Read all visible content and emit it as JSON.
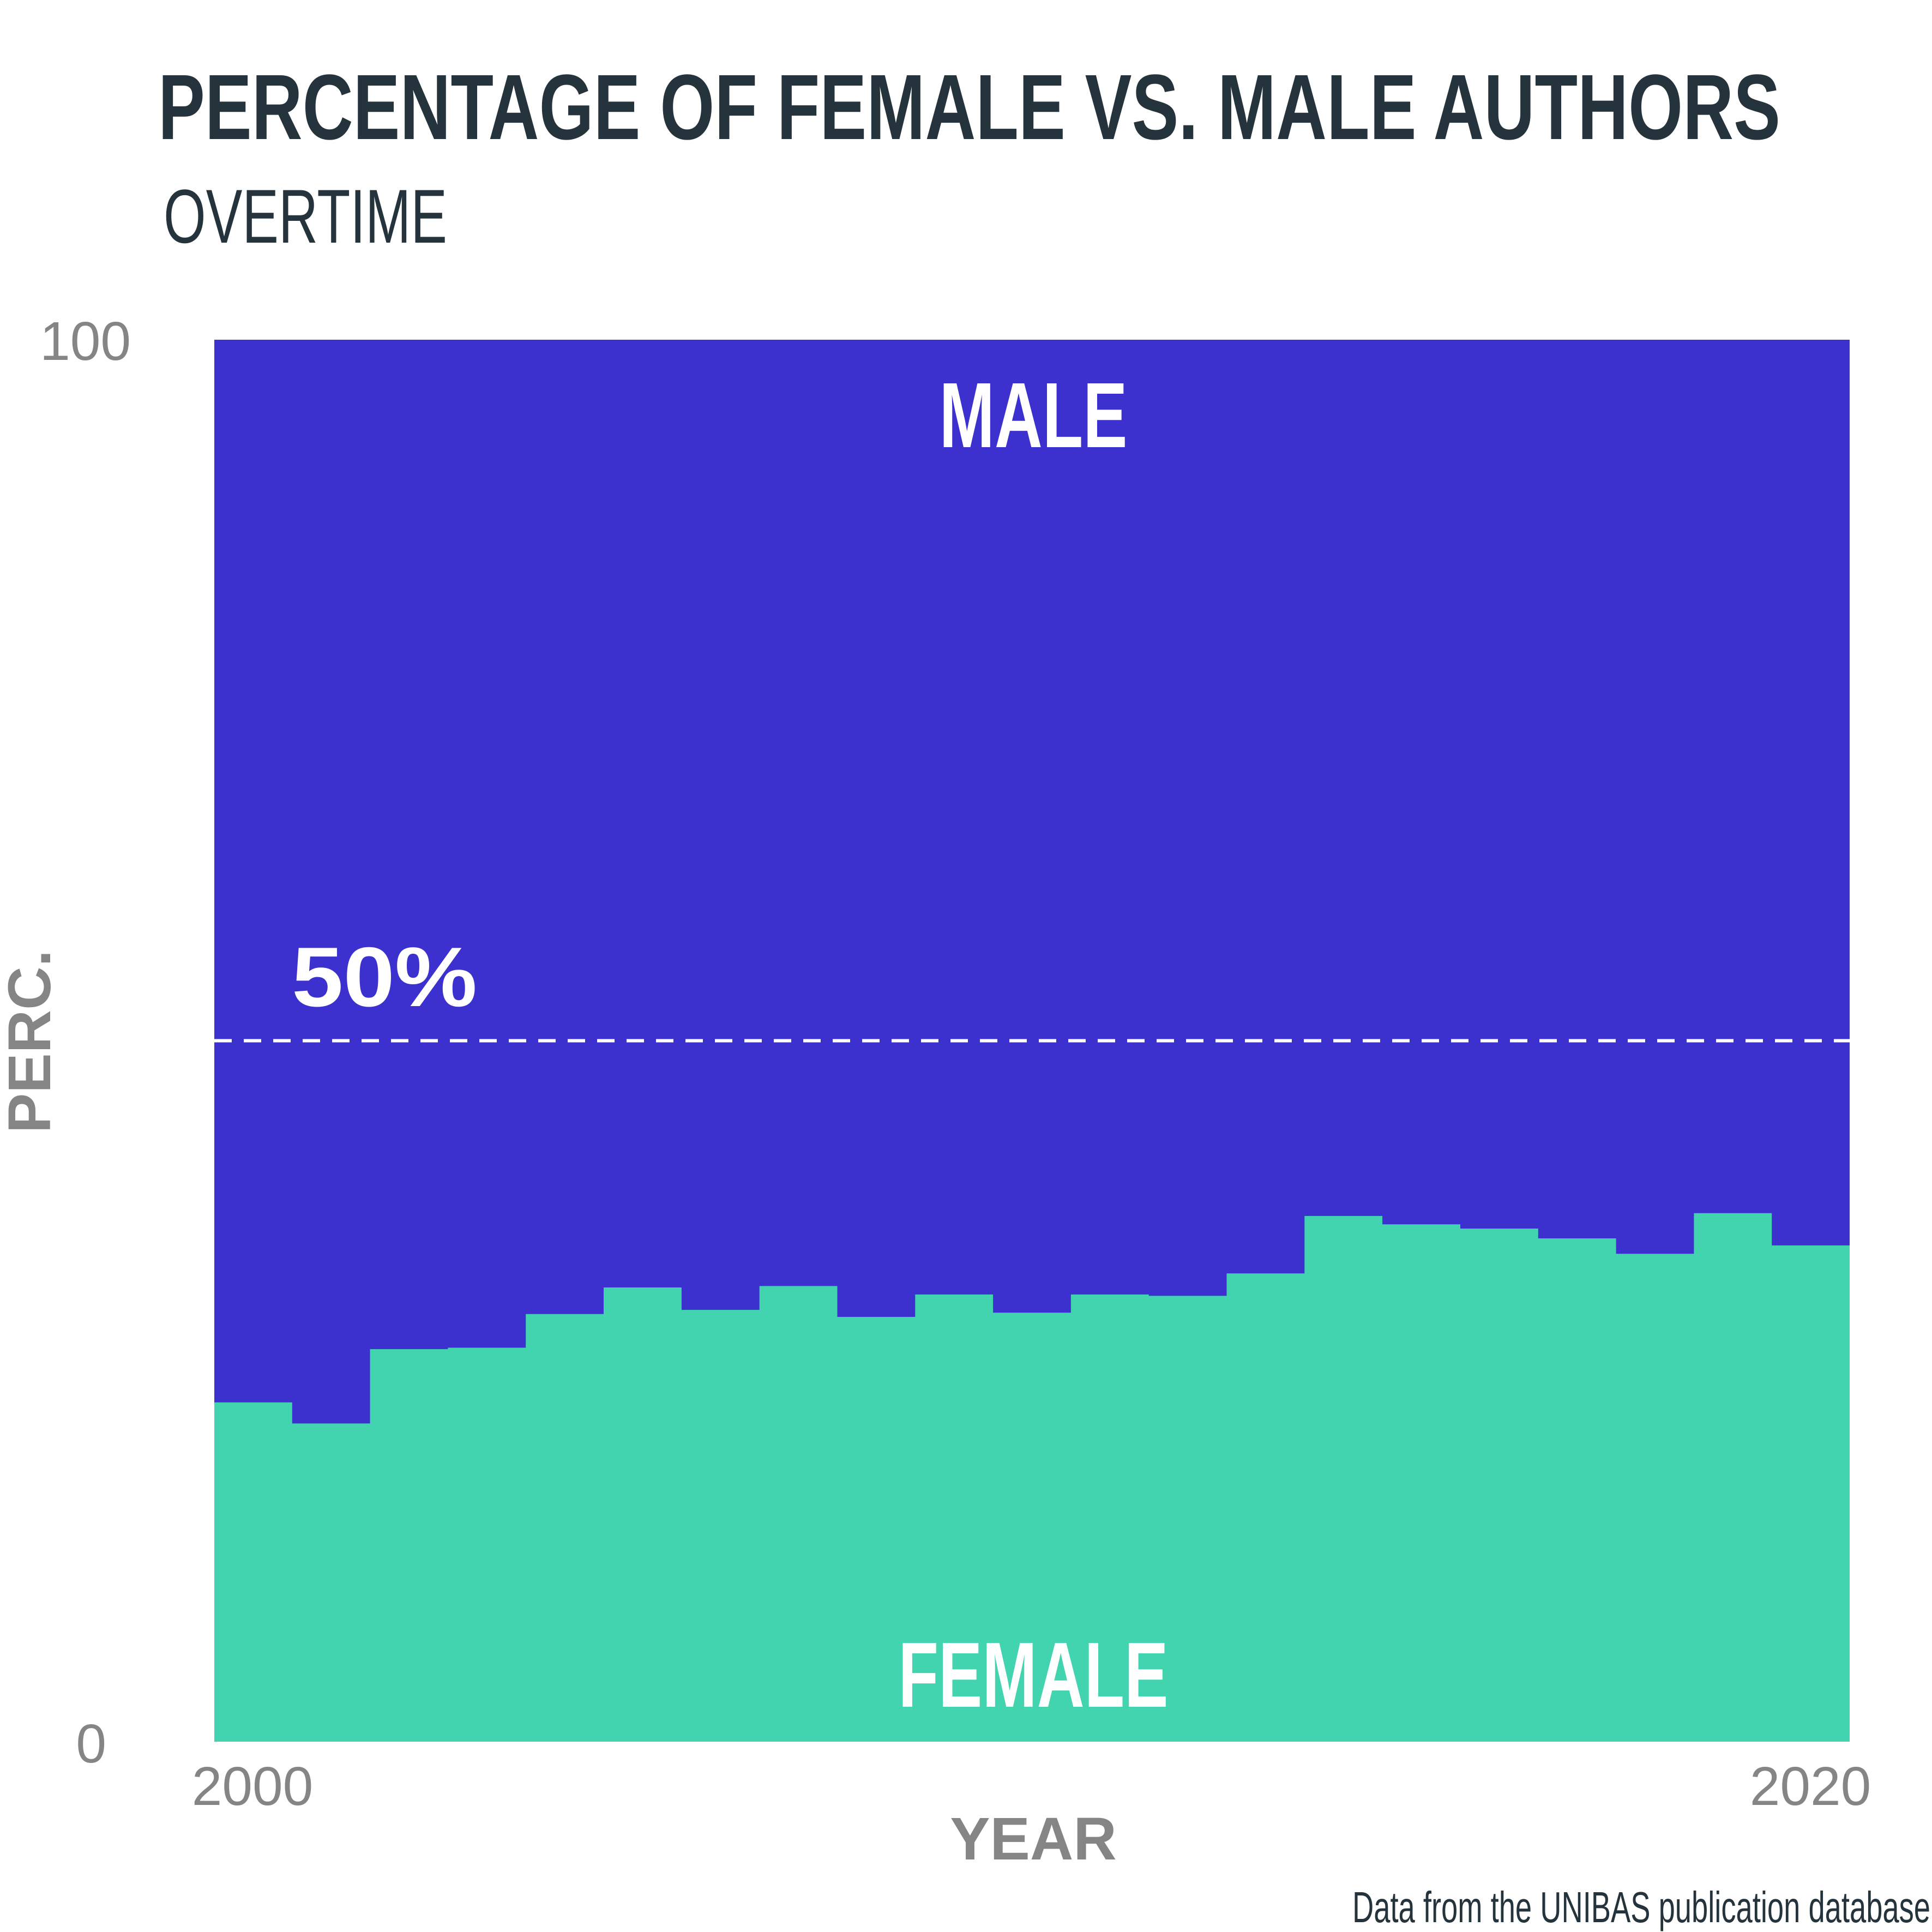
{
  "chart_data": {
    "type": "area",
    "title": "PERCENTAGE OF FEMALE VS. MALE AUTHORS",
    "subtitle": "OVERTIME",
    "xlabel": "YEAR",
    "ylabel": "PERC.",
    "ylim": [
      0,
      100
    ],
    "xlim": [
      2000,
      2020
    ],
    "x_ticks": [
      "2000",
      "2020"
    ],
    "y_ticks": [
      "100",
      "0"
    ],
    "reference_line": {
      "value": 50,
      "label": "50%",
      "style": "dashed"
    },
    "step": true,
    "x": [
      2000,
      2001,
      2002,
      2003,
      2004,
      2005,
      2006,
      2007,
      2008,
      2009,
      2010,
      2011,
      2012,
      2013,
      2014,
      2015,
      2016,
      2017,
      2018,
      2019,
      2020
    ],
    "series": [
      {
        "name": "FEMALE",
        "color": "#41D4AF",
        "values": [
          24.2,
          22.7,
          28.0,
          28.1,
          30.5,
          32.4,
          30.8,
          32.5,
          30.3,
          31.9,
          30.6,
          31.9,
          31.8,
          33.4,
          37.5,
          36.9,
          36.6,
          35.9,
          34.8,
          37.7,
          35.4
        ]
      },
      {
        "name": "MALE",
        "color": "#3C31CE",
        "values": [
          75.8,
          77.3,
          72.0,
          71.9,
          69.5,
          67.6,
          69.2,
          67.5,
          69.7,
          68.1,
          69.4,
          68.1,
          68.2,
          66.6,
          62.5,
          63.1,
          63.4,
          64.1,
          65.2,
          62.3,
          64.6
        ]
      }
    ],
    "source_note": "Data from the UNIBAS publication database"
  }
}
